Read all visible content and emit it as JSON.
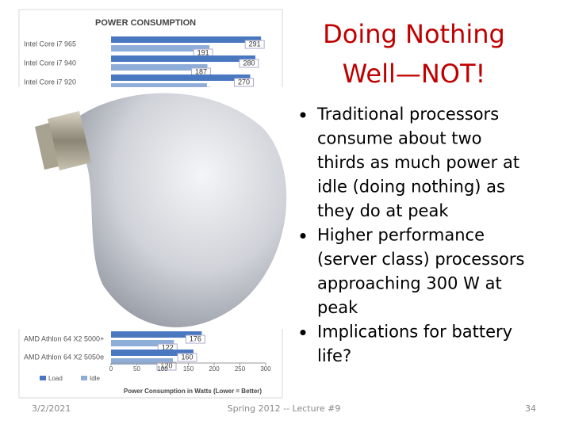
{
  "slide": {
    "title_lines": [
      "Doing Nothing",
      "Well—NOT!"
    ],
    "bullets": [
      [
        "Traditional processors",
        "consume about two",
        "thirds as much power at",
        "idle (doing nothing) as",
        "they do at peak"
      ],
      [
        "Higher performance",
        "(server class) processors",
        "approaching 300 W at",
        "peak"
      ],
      [
        "Implications for battery",
        "life?"
      ]
    ],
    "footer": {
      "date": "3/2/2021",
      "center": "Spring 2012 -- Lecture #9",
      "page": "34"
    }
  },
  "chart": {
    "type": "bar",
    "title": "POWER CONSUMPTION",
    "categories": [
      "Intel Core i7 965",
      "Intel Core i7 940",
      "Intel Core i7 920",
      "AMD Athlon 64 X2 5000+",
      "AMD Athlon 64 X2 5050e"
    ],
    "series": [
      {
        "name": "Load",
        "color": "#4a78c0",
        "values": [
          291,
          280,
          270,
          176,
          160
        ]
      },
      {
        "name": "Idle",
        "color": "#8fadd9",
        "values": [
          191,
          187,
          186,
          122,
          120
        ]
      }
    ],
    "xlim": [
      0,
      300
    ],
    "xticks": [
      0,
      50,
      100,
      150,
      200,
      250,
      300
    ],
    "xlabel": "Power Consumption in Watts (Lower = Better)"
  }
}
